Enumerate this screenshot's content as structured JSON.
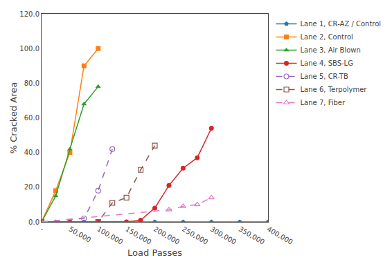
{
  "chart_data": {
    "type": "line",
    "xlabel": "Load Passes",
    "ylabel": "% Cracked Area",
    "xlim": [
      0,
      400000
    ],
    "ylim": [
      0,
      120
    ],
    "xticks": [
      {
        "value": 0,
        "label": "-"
      },
      {
        "value": 50000,
        "label": "50,000"
      },
      {
        "value": 100000,
        "label": "100,000"
      },
      {
        "value": 150000,
        "label": "150,000"
      },
      {
        "value": 200000,
        "label": "200,000"
      },
      {
        "value": 250000,
        "label": "250,000"
      },
      {
        "value": 300000,
        "label": "300,000"
      },
      {
        "value": 350000,
        "label": "350,000"
      },
      {
        "value": 400000,
        "label": "400,000"
      }
    ],
    "yticks": [
      {
        "value": 0,
        "label": "0.0"
      },
      {
        "value": 20,
        "label": "20.0"
      },
      {
        "value": 40,
        "label": "40.0"
      },
      {
        "value": 60,
        "label": "60.0"
      },
      {
        "value": 80,
        "label": "80.0"
      },
      {
        "value": 100,
        "label": "100.0"
      },
      {
        "value": 120,
        "label": "120.0"
      }
    ],
    "grid": false,
    "legend": "right",
    "series": [
      {
        "name": "Lane 1, CR-AZ / Control",
        "marker": "pentagon",
        "line_style": "solid",
        "x": [
          0,
          25000,
          50000,
          75000,
          100000,
          150000,
          200000,
          250000,
          300000,
          350000,
          400000
        ],
        "values": [
          0,
          0,
          0,
          0,
          0,
          0,
          0,
          0,
          0,
          0,
          0
        ]
      },
      {
        "name": "Lane 2, Control",
        "marker": "square",
        "line_style": "solid",
        "x": [
          0,
          25000,
          50000,
          75000,
          100000
        ],
        "values": [
          0,
          18,
          40,
          90,
          100
        ]
      },
      {
        "name": "Lane 3, Air Blown",
        "marker": "triangle-up",
        "line_style": "solid",
        "x": [
          0,
          25000,
          50000,
          75000,
          100000
        ],
        "values": [
          0,
          15,
          42,
          68,
          78
        ]
      },
      {
        "name": "Lane 4, SBS-LG",
        "marker": "circle",
        "line_style": "solid",
        "x": [
          0,
          50000,
          100000,
          150000,
          175000,
          200000,
          225000,
          250000,
          275000,
          300000
        ],
        "values": [
          0,
          0,
          0,
          0,
          1,
          8,
          21,
          31,
          37,
          54
        ]
      },
      {
        "name": "Lane 5, CR-TB",
        "marker": "circle-open",
        "line_style": "dash",
        "x": [
          0,
          75000,
          100000,
          125000
        ],
        "values": [
          0,
          2,
          18,
          42
        ]
      },
      {
        "name": "Lane 6, Terpolymer",
        "marker": "square-open",
        "line_style": "dash",
        "x": [
          0,
          100000,
          125000,
          150000,
          175000,
          200000
        ],
        "values": [
          0,
          0,
          11,
          14,
          30,
          44
        ]
      },
      {
        "name": "Lane 7, Fiber",
        "marker": "triangle-up-open",
        "line_style": "dash",
        "x": [
          0,
          225000,
          250000,
          275000,
          300000
        ],
        "values": [
          0,
          7,
          9,
          10,
          14
        ]
      }
    ]
  }
}
